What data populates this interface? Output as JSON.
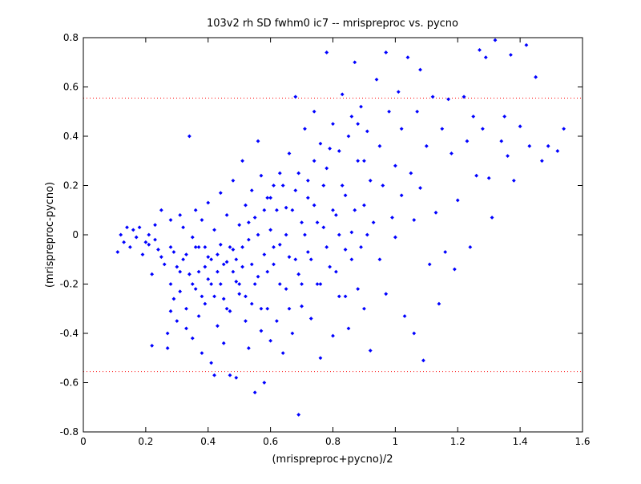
{
  "chart_data": {
    "type": "scatter",
    "title": "103v2 rh SD fwhm0 ic7 -- mrispreproc vs. pycno",
    "xlabel": "(mrispreproc+pycno)/2",
    "ylabel": "(mrispreproc-pycno)",
    "xlim": [
      0,
      1.6
    ],
    "ylim": [
      -0.8,
      0.8
    ],
    "xticks": [
      "0",
      "0.2",
      "0.4",
      "0.6",
      "0.8",
      "1",
      "1.2",
      "1.4",
      "1.6"
    ],
    "yticks": [
      "-0.8",
      "-0.6",
      "-0.4",
      "-0.2",
      "0",
      "0.2",
      "0.4",
      "0.6",
      "0.8"
    ],
    "grid": false,
    "marker_color": "#0000ff",
    "limit_line_color": "#ff0000",
    "limit_lines": [
      0.555,
      -0.555
    ],
    "points": [
      [
        0.11,
        -0.07
      ],
      [
        0.12,
        0.0
      ],
      [
        0.13,
        -0.03
      ],
      [
        0.14,
        0.03
      ],
      [
        0.15,
        -0.05
      ],
      [
        0.16,
        0.02
      ],
      [
        0.17,
        -0.01
      ],
      [
        0.18,
        0.03
      ],
      [
        0.19,
        -0.08
      ],
      [
        0.2,
        -0.03
      ],
      [
        0.21,
        0.0
      ],
      [
        0.21,
        -0.04
      ],
      [
        0.22,
        -0.16
      ],
      [
        0.22,
        -0.45
      ],
      [
        0.23,
        0.04
      ],
      [
        0.23,
        -0.02
      ],
      [
        0.24,
        -0.06
      ],
      [
        0.25,
        0.1
      ],
      [
        0.25,
        -0.09
      ],
      [
        0.26,
        -0.12
      ],
      [
        0.27,
        -0.4
      ],
      [
        0.27,
        -0.46
      ],
      [
        0.28,
        0.06
      ],
      [
        0.28,
        -0.2
      ],
      [
        0.28,
        -0.31
      ],
      [
        0.29,
        -0.07
      ],
      [
        0.29,
        -0.26
      ],
      [
        0.3,
        -0.13
      ],
      [
        0.3,
        -0.35
      ],
      [
        0.31,
        0.08
      ],
      [
        0.31,
        -0.23
      ],
      [
        0.32,
        0.03
      ],
      [
        0.32,
        -0.1
      ],
      [
        0.33,
        -0.3
      ],
      [
        0.33,
        -0.38
      ],
      [
        0.34,
        0.4
      ],
      [
        0.34,
        -0.16
      ],
      [
        0.35,
        -0.01
      ],
      [
        0.35,
        -0.42
      ],
      [
        0.36,
        0.1
      ],
      [
        0.36,
        -0.22
      ],
      [
        0.37,
        -0.05
      ],
      [
        0.37,
        -0.33
      ],
      [
        0.38,
        0.06
      ],
      [
        0.38,
        -0.48
      ],
      [
        0.39,
        -0.13
      ],
      [
        0.39,
        -0.28
      ],
      [
        0.4,
        0.13
      ],
      [
        0.4,
        -0.09
      ],
      [
        0.41,
        -0.2
      ],
      [
        0.41,
        -0.52
      ],
      [
        0.42,
        -0.57
      ],
      [
        0.42,
        0.02
      ],
      [
        0.43,
        -0.15
      ],
      [
        0.43,
        -0.37
      ],
      [
        0.44,
        0.17
      ],
      [
        0.44,
        -0.04
      ],
      [
        0.45,
        -0.26
      ],
      [
        0.45,
        -0.44
      ],
      [
        0.46,
        0.08
      ],
      [
        0.46,
        -0.11
      ],
      [
        0.47,
        -0.31
      ],
      [
        0.47,
        -0.57
      ],
      [
        0.48,
        0.22
      ],
      [
        0.48,
        -0.06
      ],
      [
        0.49,
        -0.19
      ],
      [
        0.49,
        -0.58
      ],
      [
        0.5,
        0.04
      ],
      [
        0.5,
        -0.24
      ],
      [
        0.51,
        0.3
      ],
      [
        0.51,
        -0.13
      ],
      [
        0.52,
        -0.35
      ],
      [
        0.52,
        0.12
      ],
      [
        0.53,
        -0.02
      ],
      [
        0.53,
        -0.46
      ],
      [
        0.54,
        0.18
      ],
      [
        0.54,
        -0.28
      ],
      [
        0.55,
        -0.64
      ],
      [
        0.55,
        0.07
      ],
      [
        0.56,
        0.38
      ],
      [
        0.56,
        -0.17
      ],
      [
        0.57,
        -0.39
      ],
      [
        0.57,
        0.24
      ],
      [
        0.58,
        -0.08
      ],
      [
        0.58,
        -0.6
      ],
      [
        0.59,
        0.15
      ],
      [
        0.59,
        -0.3
      ],
      [
        0.6,
        0.02
      ],
      [
        0.6,
        -0.43
      ],
      [
        0.61,
        0.2
      ],
      [
        0.61,
        -0.12
      ],
      [
        0.62,
        -0.35
      ],
      [
        0.63,
        0.25
      ],
      [
        0.63,
        -0.04
      ],
      [
        0.64,
        -0.48
      ],
      [
        0.65,
        0.11
      ],
      [
        0.65,
        -0.22
      ],
      [
        0.66,
        0.33
      ],
      [
        0.66,
        -0.09
      ],
      [
        0.67,
        -0.4
      ],
      [
        0.68,
        0.56
      ],
      [
        0.68,
        0.18
      ],
      [
        0.69,
        -0.73
      ],
      [
        0.69,
        -0.16
      ],
      [
        0.7,
        0.05
      ],
      [
        0.7,
        -0.29
      ],
      [
        0.71,
        0.43
      ],
      [
        0.72,
        0.22
      ],
      [
        0.72,
        -0.07
      ],
      [
        0.73,
        -0.34
      ],
      [
        0.74,
        0.5
      ],
      [
        0.74,
        0.12
      ],
      [
        0.75,
        -0.2
      ],
      [
        0.76,
        0.37
      ],
      [
        0.76,
        -0.5
      ],
      [
        0.77,
        0.03
      ],
      [
        0.78,
        0.74
      ],
      [
        0.78,
        0.27
      ],
      [
        0.79,
        -0.13
      ],
      [
        0.8,
        0.45
      ],
      [
        0.8,
        -0.41
      ],
      [
        0.81,
        0.08
      ],
      [
        0.82,
        0.34
      ],
      [
        0.82,
        -0.25
      ],
      [
        0.83,
        0.57
      ],
      [
        0.84,
        0.16
      ],
      [
        0.84,
        -0.06
      ],
      [
        0.85,
        -0.38
      ],
      [
        0.86,
        0.48
      ],
      [
        0.86,
        0.01
      ],
      [
        0.87,
        0.7
      ],
      [
        0.88,
        0.3
      ],
      [
        0.88,
        -0.22
      ],
      [
        0.89,
        0.52
      ],
      [
        0.9,
        -0.3
      ],
      [
        0.9,
        0.12
      ],
      [
        0.91,
        0.42
      ],
      [
        0.92,
        -0.47
      ],
      [
        0.92,
        0.22
      ],
      [
        0.93,
        0.05
      ],
      [
        0.94,
        0.63
      ],
      [
        0.95,
        0.36
      ],
      [
        0.95,
        -0.1
      ],
      [
        0.96,
        0.2
      ],
      [
        0.97,
        0.74
      ],
      [
        0.97,
        -0.24
      ],
      [
        0.98,
        0.5
      ],
      [
        0.99,
        0.07
      ],
      [
        1.0,
        0.28
      ],
      [
        1.0,
        -0.01
      ],
      [
        1.01,
        0.58
      ],
      [
        1.02,
        0.43
      ],
      [
        1.02,
        0.16
      ],
      [
        1.03,
        -0.33
      ],
      [
        1.04,
        0.72
      ],
      [
        1.05,
        0.25
      ],
      [
        1.06,
        -0.4
      ],
      [
        1.06,
        0.06
      ],
      [
        1.07,
        0.5
      ],
      [
        1.08,
        0.67
      ],
      [
        1.08,
        0.19
      ],
      [
        1.09,
        -0.51
      ],
      [
        1.1,
        0.36
      ],
      [
        1.11,
        -0.12
      ],
      [
        1.12,
        0.56
      ],
      [
        1.13,
        0.09
      ],
      [
        1.14,
        -0.28
      ],
      [
        1.15,
        0.43
      ],
      [
        1.16,
        -0.07
      ],
      [
        1.17,
        0.55
      ],
      [
        1.18,
        0.33
      ],
      [
        1.19,
        -0.14
      ],
      [
        1.2,
        0.14
      ],
      [
        1.22,
        0.56
      ],
      [
        1.23,
        0.38
      ],
      [
        1.24,
        -0.05
      ],
      [
        1.25,
        0.48
      ],
      [
        1.26,
        0.24
      ],
      [
        1.27,
        0.75
      ],
      [
        1.28,
        0.43
      ],
      [
        1.29,
        0.72
      ],
      [
        1.3,
        0.23
      ],
      [
        1.31,
        0.07
      ],
      [
        1.32,
        0.79
      ],
      [
        1.34,
        0.38
      ],
      [
        1.35,
        0.48
      ],
      [
        1.36,
        0.32
      ],
      [
        1.37,
        0.73
      ],
      [
        1.38,
        0.22
      ],
      [
        1.4,
        0.44
      ],
      [
        1.42,
        0.77
      ],
      [
        1.43,
        0.36
      ],
      [
        1.45,
        0.64
      ],
      [
        1.47,
        0.3
      ],
      [
        1.49,
        0.36
      ],
      [
        1.52,
        0.34
      ],
      [
        1.54,
        0.43
      ],
      [
        0.28,
        -0.05
      ],
      [
        0.31,
        -0.15
      ],
      [
        0.33,
        -0.08
      ],
      [
        0.35,
        -0.2
      ],
      [
        0.36,
        -0.05
      ],
      [
        0.37,
        -0.15
      ],
      [
        0.38,
        -0.25
      ],
      [
        0.39,
        -0.05
      ],
      [
        0.4,
        -0.18
      ],
      [
        0.41,
        -0.1
      ],
      [
        0.42,
        -0.25
      ],
      [
        0.43,
        -0.08
      ],
      [
        0.44,
        -0.2
      ],
      [
        0.45,
        -0.12
      ],
      [
        0.46,
        -0.3
      ],
      [
        0.47,
        -0.05
      ],
      [
        0.48,
        -0.15
      ],
      [
        0.49,
        -0.1
      ],
      [
        0.5,
        -0.2
      ],
      [
        0.51,
        -0.05
      ],
      [
        0.52,
        -0.25
      ],
      [
        0.53,
        0.05
      ],
      [
        0.54,
        -0.12
      ],
      [
        0.55,
        -0.2
      ],
      [
        0.56,
        0.0
      ],
      [
        0.57,
        -0.3
      ],
      [
        0.58,
        0.1
      ],
      [
        0.59,
        -0.15
      ],
      [
        0.6,
        0.15
      ],
      [
        0.61,
        -0.05
      ],
      [
        0.62,
        0.1
      ],
      [
        0.63,
        -0.2
      ],
      [
        0.64,
        0.2
      ],
      [
        0.65,
        0.0
      ],
      [
        0.66,
        -0.3
      ],
      [
        0.67,
        0.1
      ],
      [
        0.68,
        -0.1
      ],
      [
        0.69,
        0.25
      ],
      [
        0.7,
        -0.2
      ],
      [
        0.71,
        0.0
      ],
      [
        0.72,
        0.15
      ],
      [
        0.73,
        -0.1
      ],
      [
        0.74,
        0.3
      ],
      [
        0.75,
        0.05
      ],
      [
        0.76,
        -0.2
      ],
      [
        0.77,
        0.2
      ],
      [
        0.78,
        -0.05
      ],
      [
        0.79,
        0.35
      ],
      [
        0.8,
        0.1
      ],
      [
        0.81,
        -0.15
      ],
      [
        0.82,
        0.0
      ],
      [
        0.83,
        0.2
      ],
      [
        0.84,
        -0.25
      ],
      [
        0.85,
        0.4
      ],
      [
        0.86,
        -0.1
      ],
      [
        0.87,
        0.1
      ],
      [
        0.88,
        0.45
      ],
      [
        0.89,
        -0.05
      ],
      [
        0.9,
        0.3
      ],
      [
        0.91,
        0.0
      ]
    ]
  }
}
